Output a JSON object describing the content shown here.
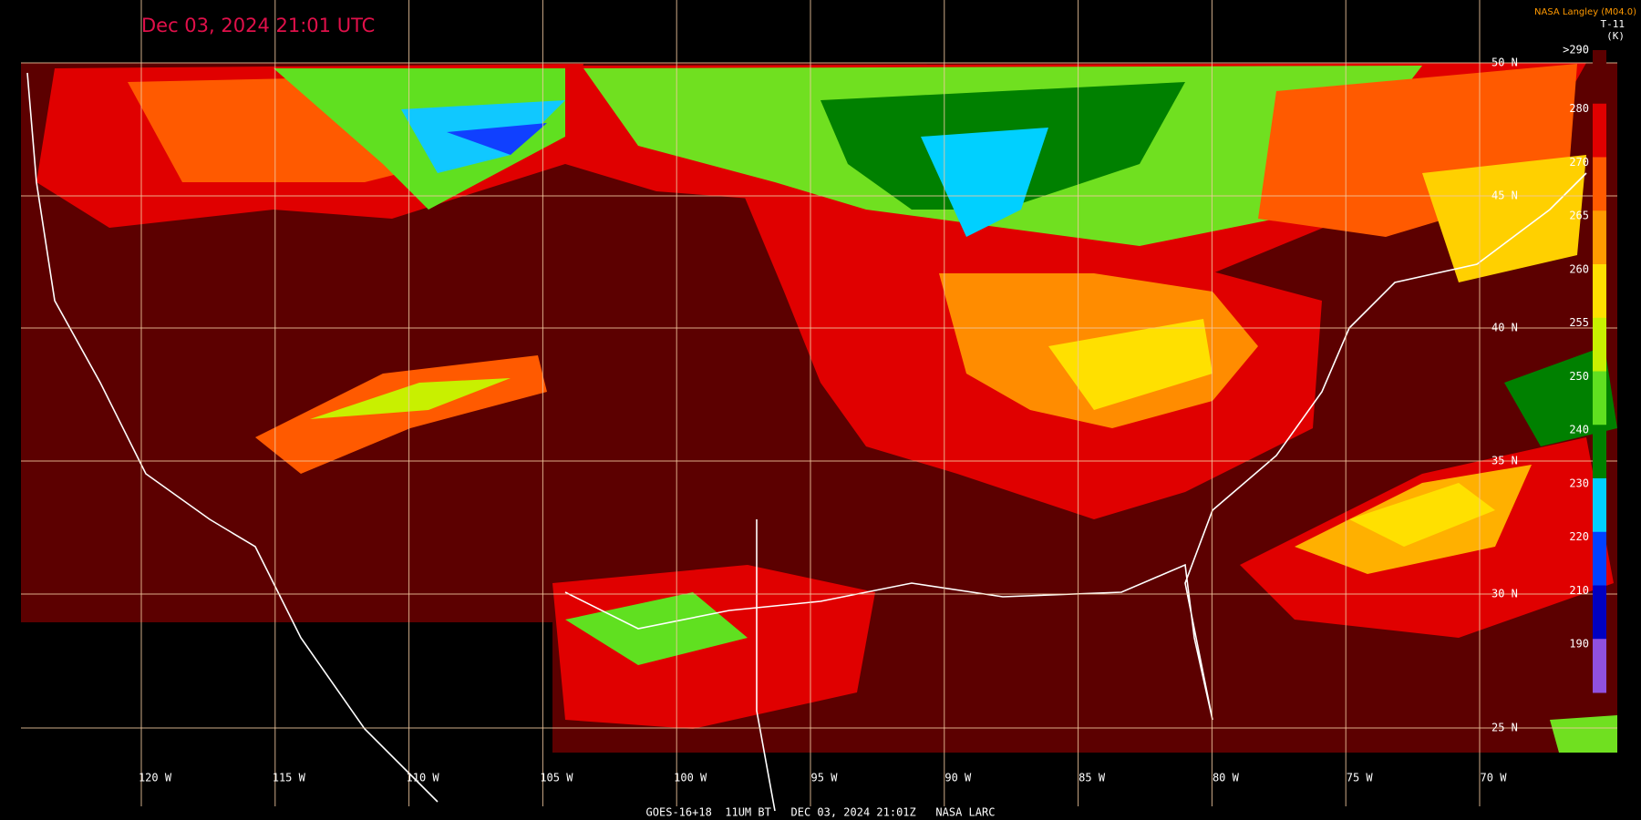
{
  "header": {
    "timestamp": "Dec 03, 2024 21:01 UTC",
    "source": "NASA Langley (M04.0)",
    "product": "T-11",
    "unit": "(K)"
  },
  "legend": {
    "ticks": [
      ">290",
      "280",
      "270",
      "265",
      "260",
      "255",
      "250",
      "240",
      "230",
      "220",
      "210",
      "190"
    ]
  },
  "grid": {
    "latitudes": [
      "50 N",
      "45 N",
      "40 N",
      "35 N",
      "30 N",
      "25 N"
    ],
    "longitudes": [
      "120 W",
      "115 W",
      "110 W",
      "105 W",
      "100 W",
      "95 W",
      "90 W",
      "85 W",
      "80 W",
      "75 W",
      "70 W"
    ]
  },
  "footer": {
    "caption": "GOES-16+18  11UM BT   DEC 03, 2024 21:01Z   NASA LARC"
  }
}
